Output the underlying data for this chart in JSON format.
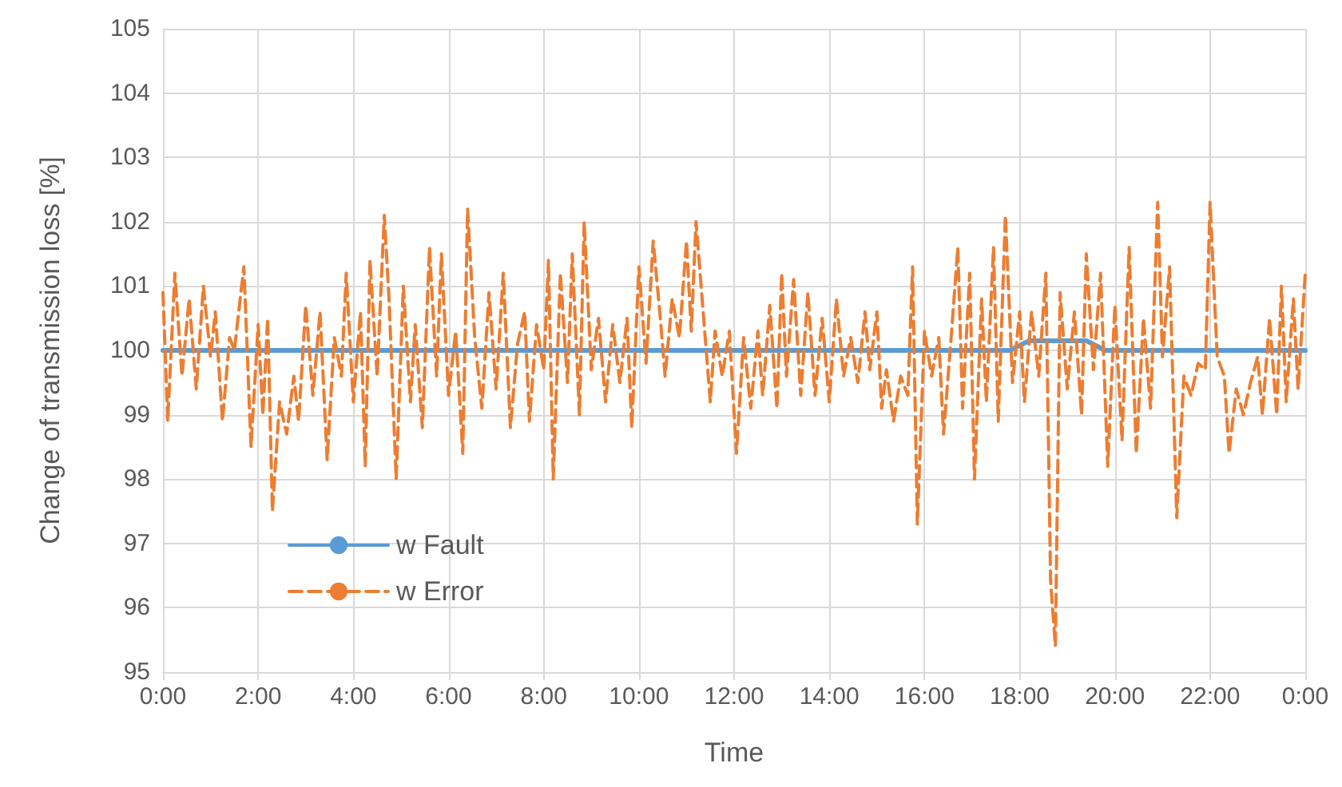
{
  "chart_data": {
    "type": "line",
    "xlabel": "Time",
    "ylabel": "Change of transmission loss [%]",
    "xlim": [
      0,
      24
    ],
    "xticks": [
      {
        "value": 0,
        "label": "0:00"
      },
      {
        "value": 2,
        "label": "2:00"
      },
      {
        "value": 4,
        "label": "4:00"
      },
      {
        "value": 6,
        "label": "6:00"
      },
      {
        "value": 8,
        "label": "8:00"
      },
      {
        "value": 10,
        "label": "10:00"
      },
      {
        "value": 12,
        "label": "12:00"
      },
      {
        "value": 14,
        "label": "14:00"
      },
      {
        "value": 16,
        "label": "16:00"
      },
      {
        "value": 18,
        "label": "18:00"
      },
      {
        "value": 20,
        "label": "20:00"
      },
      {
        "value": 22,
        "label": "22:00"
      },
      {
        "value": 24,
        "label": "0:00"
      }
    ],
    "ylim": [
      95,
      105
    ],
    "yticks": [
      95,
      96,
      97,
      98,
      99,
      100,
      101,
      102,
      103,
      104,
      105
    ],
    "grid": true,
    "legend": "bottom left",
    "marker": "none",
    "series": [
      {
        "name": "w Fault",
        "color": "#5b9bd5",
        "line_style": "solid",
        "x": [
          0,
          17.8,
          18.2,
          19.4,
          19.8,
          24
        ],
        "values": [
          100,
          100,
          100.15,
          100.15,
          100,
          100
        ]
      },
      {
        "name": "w Error",
        "color": "#ed7d31",
        "line_style": "dashed",
        "x": [
          0,
          0.1,
          0.25,
          0.4,
          0.55,
          0.7,
          0.85,
          1.0,
          1.1,
          1.25,
          1.4,
          1.5,
          1.7,
          1.85,
          2.0,
          2.1,
          2.2,
          2.3,
          2.45,
          2.6,
          2.75,
          2.85,
          3.0,
          3.15,
          3.3,
          3.45,
          3.6,
          3.75,
          3.85,
          4.0,
          4.15,
          4.25,
          4.35,
          4.5,
          4.65,
          4.75,
          4.9,
          5.05,
          5.2,
          5.3,
          5.45,
          5.6,
          5.75,
          5.85,
          6.0,
          6.15,
          6.3,
          6.4,
          6.55,
          6.7,
          6.85,
          7.0,
          7.15,
          7.3,
          7.45,
          7.6,
          7.7,
          7.85,
          8.0,
          8.1,
          8.2,
          8.35,
          8.5,
          8.6,
          8.75,
          8.85,
          9.0,
          9.15,
          9.3,
          9.45,
          9.6,
          9.75,
          9.85,
          10.0,
          10.15,
          10.3,
          10.45,
          10.55,
          10.7,
          10.85,
          11.0,
          11.1,
          11.2,
          11.35,
          11.5,
          11.6,
          11.75,
          11.9,
          12.05,
          12.2,
          12.35,
          12.5,
          12.6,
          12.75,
          12.9,
          13.0,
          13.1,
          13.25,
          13.4,
          13.55,
          13.7,
          13.85,
          14.0,
          14.15,
          14.3,
          14.45,
          14.6,
          14.75,
          14.85,
          15.0,
          15.1,
          15.2,
          15.35,
          15.5,
          15.65,
          15.75,
          15.85,
          16.0,
          16.15,
          16.3,
          16.4,
          16.55,
          16.7,
          16.8,
          16.95,
          17.05,
          17.2,
          17.3,
          17.45,
          17.55,
          17.7,
          17.85,
          18.0,
          18.1,
          18.25,
          18.4,
          18.55,
          18.65,
          18.75,
          18.85,
          19.0,
          19.15,
          19.3,
          19.4,
          19.55,
          19.7,
          19.85,
          20.0,
          20.15,
          20.3,
          20.45,
          20.6,
          20.75,
          20.9,
          21.0,
          21.15,
          21.3,
          21.45,
          21.6,
          21.75,
          21.9,
          22.0,
          22.15,
          22.3,
          22.4,
          22.55,
          22.7,
          22.85,
          23.0,
          23.1,
          23.25,
          23.4,
          23.5,
          23.6,
          23.75,
          23.85,
          24.0
        ],
        "values": [
          100.9,
          98.9,
          101.2,
          99.6,
          100.8,
          99.4,
          101.0,
          99.9,
          100.6,
          98.9,
          100.2,
          100.0,
          101.3,
          98.5,
          100.4,
          99.0,
          100.5,
          97.5,
          99.2,
          98.7,
          99.6,
          98.9,
          100.7,
          99.3,
          100.6,
          98.3,
          100.2,
          99.6,
          101.2,
          99.2,
          100.6,
          98.2,
          101.4,
          99.6,
          102.1,
          100.8,
          98.0,
          101.0,
          99.2,
          100.4,
          98.8,
          101.6,
          99.6,
          101.5,
          99.3,
          100.3,
          98.4,
          102.2,
          100.2,
          99.1,
          100.9,
          99.4,
          101.2,
          98.8,
          100.1,
          100.6,
          98.9,
          100.4,
          99.7,
          101.4,
          98.0,
          101.2,
          99.5,
          101.5,
          99.0,
          102.0,
          99.7,
          100.5,
          99.2,
          100.4,
          99.5,
          100.5,
          98.8,
          101.3,
          99.8,
          101.7,
          100.5,
          99.6,
          100.8,
          100.2,
          101.7,
          100.3,
          102.0,
          100.6,
          99.2,
          100.3,
          99.6,
          100.3,
          98.4,
          100.2,
          99.1,
          100.3,
          99.3,
          100.7,
          99.1,
          101.2,
          99.6,
          101.1,
          99.3,
          100.9,
          99.3,
          100.5,
          99.2,
          100.8,
          99.6,
          100.2,
          99.5,
          100.6,
          99.7,
          100.6,
          99.1,
          99.7,
          98.9,
          99.6,
          99.3,
          101.3,
          97.3,
          100.3,
          99.6,
          100.2,
          98.7,
          100.1,
          101.6,
          99.1,
          101.2,
          98.0,
          100.8,
          99.2,
          101.6,
          98.9,
          102.1,
          99.5,
          100.6,
          99.2,
          100.6,
          99.6,
          101.2,
          96.4,
          95.4,
          100.9,
          99.4,
          100.6,
          99.0,
          101.5,
          99.7,
          101.2,
          98.2,
          100.7,
          98.6,
          101.6,
          98.4,
          100.5,
          99.1,
          102.3,
          99.9,
          101.3,
          97.4,
          99.6,
          99.3,
          99.8,
          99.7,
          102.3,
          99.9,
          99.6,
          98.4,
          99.4,
          99.0,
          99.5,
          99.9,
          99.0,
          100.5,
          99.0,
          101.0,
          99.2,
          100.8,
          99.4,
          101.2
        ]
      }
    ]
  }
}
